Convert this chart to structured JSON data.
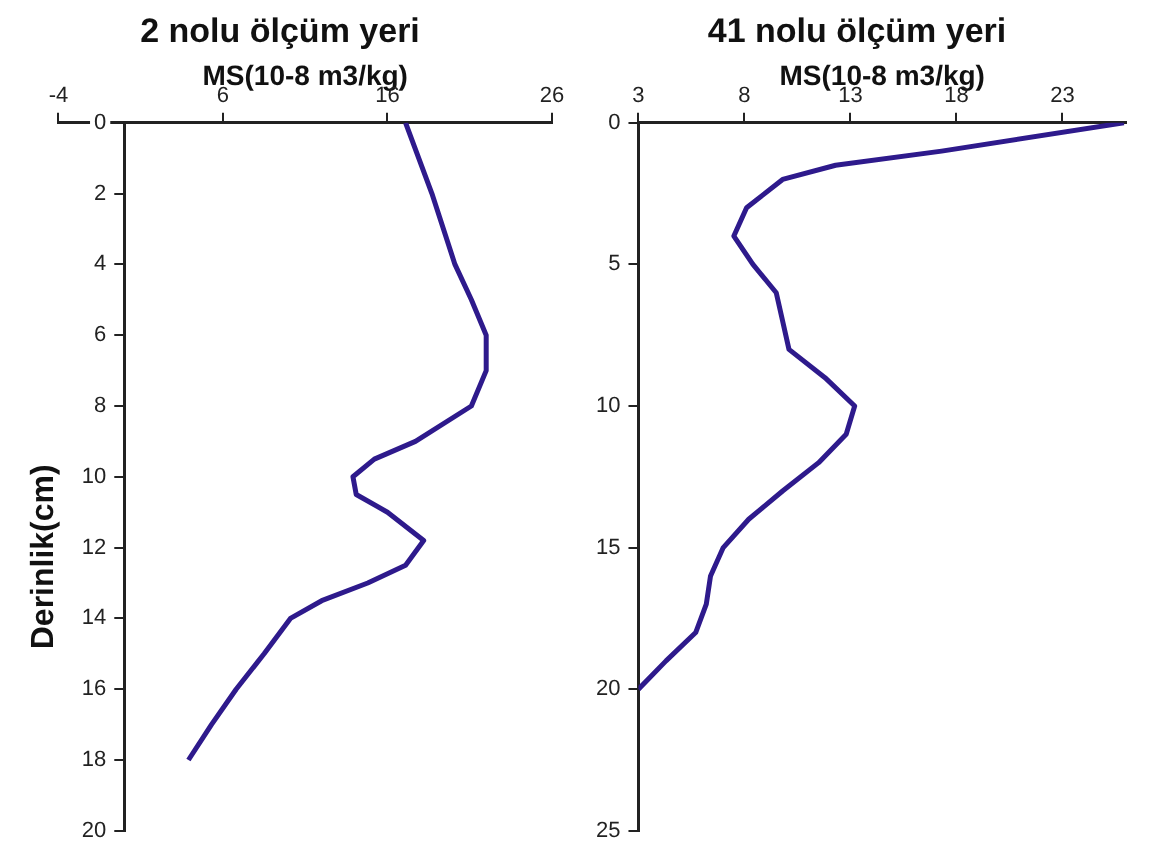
{
  "chart_data": [
    {
      "type": "line",
      "title": "2 nolu ölçüm yeri",
      "xlabel": "MS(10-8 m3/kg)",
      "ylabel": "Derinlik(cm)",
      "xlim": [
        -4,
        26
      ],
      "xticks": [
        -4,
        6,
        16,
        26
      ],
      "ylim": [
        20,
        0
      ],
      "yticks": [
        0,
        2,
        4,
        6,
        8,
        10,
        12,
        14,
        16,
        18,
        20
      ],
      "grid": false,
      "legend": false,
      "marker": "none",
      "series": [
        {
          "color": "#2e1a8c",
          "x": [
            17.1,
            18.7,
            20.1,
            21.1,
            22.0,
            22.0,
            21.1,
            17.7,
            15.2,
            13.9,
            14.1,
            16.0,
            18.2,
            17.1,
            14.8,
            12.0,
            10.1,
            8.5,
            6.8,
            5.3,
            3.9
          ],
          "values": [
            0,
            2,
            4,
            5,
            6,
            7,
            8,
            9,
            9.5,
            10,
            10.5,
            11,
            11.8,
            12.5,
            13,
            13.5,
            14,
            15,
            16,
            17,
            18
          ]
        }
      ]
    },
    {
      "type": "line",
      "title": "41 nolu ölçüm yeri",
      "xlabel": "MS(10-8 m3/kg)",
      "xlim": [
        3,
        26
      ],
      "xticks": [
        3,
        8,
        13,
        18,
        23
      ],
      "ylim": [
        25,
        0
      ],
      "yticks": [
        0,
        5,
        10,
        15,
        20,
        25
      ],
      "grid": false,
      "legend": false,
      "marker": "none",
      "series": [
        {
          "color": "#2e1a8c",
          "x": [
            25.9,
            17.3,
            12.3,
            9.8,
            8.1,
            7.5,
            8.4,
            9.5,
            9.8,
            10.1,
            11.8,
            13.2,
            12.8,
            11.5,
            9.8,
            8.2,
            7.0,
            6.4,
            6.2,
            5.7,
            4.3,
            3.0
          ],
          "values": [
            0,
            1,
            1.5,
            2,
            3,
            4,
            5,
            6,
            7,
            8,
            9,
            10,
            11,
            12,
            13,
            14,
            15,
            16,
            17,
            18,
            19,
            20
          ]
        }
      ]
    }
  ]
}
